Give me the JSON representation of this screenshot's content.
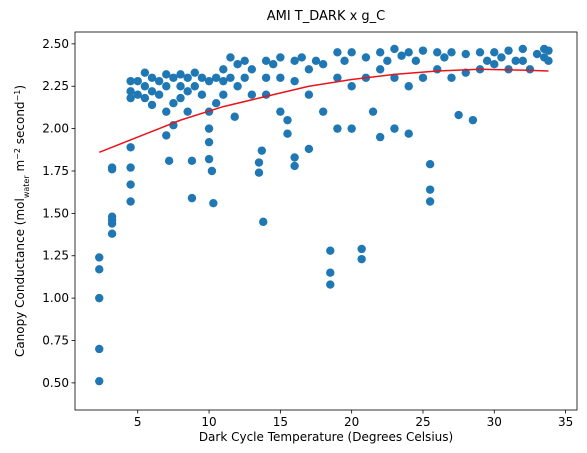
{
  "chart_data": {
    "type": "scatter",
    "title": "AMI T_DARK x g_C",
    "xlabel": "Dark Cycle Temperature (Degrees Celsius)",
    "ylabel_parts": [
      "Canopy Conductance (mol",
      "water",
      " m",
      "−2",
      " second",
      "−1",
      ")"
    ],
    "xlim": [
      0.6,
      35.8
    ],
    "ylim": [
      0.34,
      2.57
    ],
    "xticks": [
      5,
      10,
      15,
      20,
      25,
      30,
      35
    ],
    "yticks": [
      {
        "value": 0.5,
        "label": "0.50"
      },
      {
        "value": 0.75,
        "label": "0.75"
      },
      {
        "value": 1.0,
        "label": "1.00"
      },
      {
        "value": 1.25,
        "label": "1.25"
      },
      {
        "value": 1.5,
        "label": "1.50"
      },
      {
        "value": 1.75,
        "label": "1.75"
      },
      {
        "value": 2.0,
        "label": "2.00"
      },
      {
        "value": 2.25,
        "label": "2.25"
      },
      {
        "value": 2.5,
        "label": "2.50"
      }
    ],
    "series": [
      {
        "mode": "markers",
        "color": "#1f77b4",
        "x": [
          2.3,
          2.3,
          2.3,
          2.3,
          2.3,
          3.2,
          3.2,
          3.2,
          3.2,
          3.2,
          3.2,
          4.5,
          4.5,
          4.5,
          4.5,
          4.5,
          4.5,
          4.5,
          5,
          5,
          5.5,
          5.5,
          5.5,
          6,
          6,
          6,
          6.5,
          6.5,
          7,
          7,
          7,
          7,
          7.2,
          7.5,
          7.5,
          7.5,
          8,
          8,
          8,
          8.5,
          8.5,
          8.5,
          8.8,
          8.8,
          9,
          9,
          9.5,
          9.5,
          10,
          10,
          10,
          10,
          10,
          10.2,
          10.3,
          10.5,
          10.5,
          11,
          11,
          11,
          11.5,
          11.5,
          11.8,
          12,
          12,
          12.5,
          12.5,
          13,
          13,
          13.5,
          13.5,
          13.7,
          13.8,
          14,
          14,
          14,
          14.5,
          15,
          15,
          15,
          15.5,
          15.5,
          16,
          16,
          16,
          16,
          16.5,
          17,
          17,
          17,
          17.5,
          18,
          18,
          18.5,
          18.5,
          18.5,
          19,
          19,
          19,
          19.5,
          20,
          20,
          20,
          20.7,
          20.7,
          21,
          21,
          21.5,
          22,
          22,
          22,
          22.5,
          23,
          23,
          23,
          23.5,
          24,
          24,
          24,
          24.5,
          25,
          25,
          25.5,
          25.5,
          25.5,
          26,
          26,
          26.5,
          27,
          27,
          27.5,
          28,
          28,
          28.5,
          29,
          29,
          29.5,
          30,
          30,
          30.5,
          31,
          31,
          31.5,
          32,
          32,
          32.5,
          33,
          33.5,
          33.5,
          33.8,
          33.8
        ],
        "values": [
          1.24,
          1.17,
          1.0,
          0.7,
          0.51,
          1.77,
          1.76,
          1.48,
          1.46,
          1.44,
          1.38,
          1.89,
          1.77,
          1.67,
          1.57,
          2.28,
          2.22,
          2.18,
          2.28,
          2.2,
          2.33,
          2.25,
          2.18,
          2.3,
          2.22,
          2.14,
          2.28,
          2.2,
          2.32,
          2.25,
          2.1,
          1.96,
          1.81,
          2.3,
          2.15,
          2.02,
          2.32,
          2.25,
          2.18,
          2.3,
          2.22,
          2.1,
          1.81,
          1.59,
          2.33,
          2.25,
          2.3,
          2.2,
          2.28,
          2.1,
          2.0,
          1.92,
          1.82,
          1.75,
          1.56,
          2.3,
          2.15,
          2.35,
          2.28,
          2.2,
          2.42,
          2.3,
          2.07,
          2.38,
          2.25,
          2.4,
          2.3,
          2.35,
          2.2,
          1.8,
          1.74,
          1.87,
          1.45,
          2.4,
          2.3,
          2.2,
          2.38,
          2.42,
          2.3,
          2.1,
          2.05,
          1.97,
          2.4,
          2.28,
          1.83,
          1.78,
          2.42,
          2.35,
          2.2,
          1.88,
          2.4,
          2.38,
          2.1,
          1.28,
          1.15,
          1.08,
          2.45,
          2.3,
          2.0,
          2.4,
          2.45,
          2.25,
          2.0,
          1.29,
          1.23,
          2.42,
          2.3,
          2.1,
          2.45,
          2.35,
          1.95,
          2.4,
          2.47,
          2.3,
          2.0,
          2.43,
          2.45,
          2.25,
          1.97,
          2.4,
          2.46,
          2.3,
          1.79,
          1.64,
          1.57,
          2.45,
          2.35,
          2.42,
          2.45,
          2.3,
          2.08,
          2.44,
          2.33,
          2.05,
          2.45,
          2.35,
          2.4,
          2.45,
          2.38,
          2.42,
          2.46,
          2.35,
          2.4,
          2.47,
          2.4,
          2.35,
          2.44,
          2.47,
          2.42,
          2.46,
          2.4
        ]
      },
      {
        "mode": "line",
        "color": "#e8141c",
        "x": [
          2.3,
          5,
          8,
          11,
          14,
          17,
          20,
          23,
          26,
          29,
          32,
          33.8
        ],
        "values": [
          1.86,
          1.95,
          2.05,
          2.13,
          2.19,
          2.25,
          2.29,
          2.32,
          2.34,
          2.35,
          2.345,
          2.34
        ]
      }
    ]
  }
}
